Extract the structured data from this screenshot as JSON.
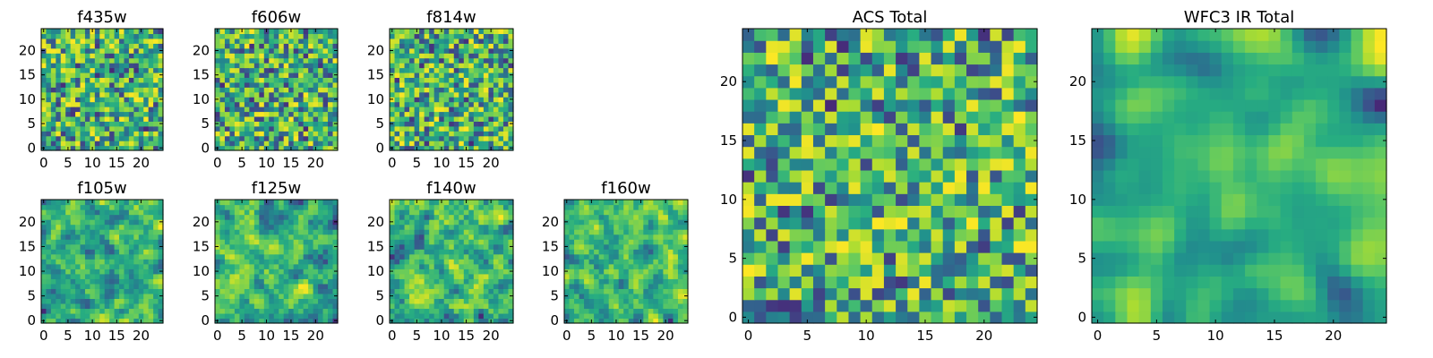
{
  "chart_data": [
    {
      "type": "heatmap",
      "title": "f435w",
      "xticks": [
        "0",
        "5",
        "10",
        "15",
        "20"
      ],
      "yticks": [
        "0",
        "5",
        "10",
        "15",
        "20"
      ],
      "xlim": [
        -0.5,
        24.5
      ],
      "ylim": [
        -0.5,
        24.5
      ],
      "grid_size": 25,
      "colormap": "viridis",
      "pattern": "noise",
      "seed": 11
    },
    {
      "type": "heatmap",
      "title": "f606w",
      "xticks": [
        "0",
        "5",
        "10",
        "15",
        "20"
      ],
      "yticks": [
        "0",
        "5",
        "10",
        "15",
        "20"
      ],
      "xlim": [
        -0.5,
        24.5
      ],
      "ylim": [
        -0.5,
        24.5
      ],
      "grid_size": 25,
      "colormap": "viridis",
      "pattern": "noise",
      "seed": 23
    },
    {
      "type": "heatmap",
      "title": "f814w",
      "xticks": [
        "0",
        "5",
        "10",
        "15",
        "20"
      ],
      "yticks": [
        "0",
        "5",
        "10",
        "15",
        "20"
      ],
      "xlim": [
        -0.5,
        24.5
      ],
      "ylim": [
        -0.5,
        24.5
      ],
      "grid_size": 25,
      "colormap": "viridis",
      "pattern": "noise",
      "seed": 37
    },
    {
      "type": "heatmap",
      "title": "f105w",
      "xticks": [
        "0",
        "5",
        "10",
        "15",
        "20"
      ],
      "yticks": [
        "0",
        "5",
        "10",
        "15",
        "20"
      ],
      "xlim": [
        -0.5,
        24.5
      ],
      "ylim": [
        -0.5,
        24.5
      ],
      "grid_size": 25,
      "colormap": "viridis",
      "pattern": "smooth",
      "seed": 41
    },
    {
      "type": "heatmap",
      "title": "f125w",
      "xticks": [
        "0",
        "5",
        "10",
        "15",
        "20"
      ],
      "yticks": [
        "0",
        "5",
        "10",
        "15",
        "20"
      ],
      "xlim": [
        -0.5,
        24.5
      ],
      "ylim": [
        -0.5,
        24.5
      ],
      "grid_size": 25,
      "colormap": "viridis",
      "pattern": "smooth",
      "seed": 53
    },
    {
      "type": "heatmap",
      "title": "f140w",
      "xticks": [
        "0",
        "5",
        "10",
        "15",
        "20"
      ],
      "yticks": [
        "0",
        "5",
        "10",
        "15",
        "20"
      ],
      "xlim": [
        -0.5,
        24.5
      ],
      "ylim": [
        -0.5,
        24.5
      ],
      "grid_size": 25,
      "colormap": "viridis",
      "pattern": "smooth",
      "seed": 67
    },
    {
      "type": "heatmap",
      "title": "f160w",
      "xticks": [
        "0",
        "5",
        "10",
        "15",
        "20"
      ],
      "yticks": [
        "0",
        "5",
        "10",
        "15",
        "20"
      ],
      "xlim": [
        -0.5,
        24.5
      ],
      "ylim": [
        -0.5,
        24.5
      ],
      "grid_size": 25,
      "colormap": "viridis",
      "pattern": "smooth",
      "seed": 79
    },
    {
      "type": "heatmap",
      "title": "ACS Total",
      "xticks": [
        "0",
        "5",
        "10",
        "15",
        "20"
      ],
      "yticks": [
        "0",
        "5",
        "10",
        "15",
        "20"
      ],
      "xlim": [
        -0.5,
        24.5
      ],
      "ylim": [
        -0.5,
        24.5
      ],
      "grid_size": 25,
      "colormap": "viridis",
      "pattern": "noise",
      "seed": 97
    },
    {
      "type": "heatmap",
      "title": "WFC3 IR Total",
      "xticks": [
        "0",
        "5",
        "10",
        "15",
        "20"
      ],
      "yticks": [
        "0",
        "5",
        "10",
        "15",
        "20"
      ],
      "xlim": [
        -0.5,
        24.5
      ],
      "ylim": [
        -0.5,
        24.5
      ],
      "grid_size": 25,
      "colormap": "viridis",
      "pattern": "smooth-strong",
      "seed": 113
    }
  ]
}
